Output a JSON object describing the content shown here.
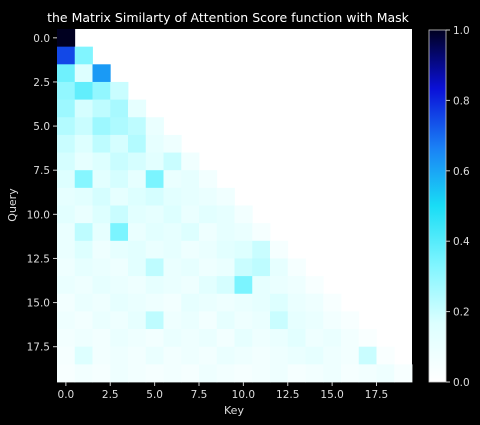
{
  "chart_data": {
    "type": "heatmap",
    "title": "the Matrix Similarty of Attention Score function with Mask",
    "xlabel": "Key",
    "ylabel": "Query",
    "x_tick_labels": [
      "0.0",
      "2.5",
      "5.0",
      "7.5",
      "10.0",
      "12.5",
      "15.0",
      "17.5"
    ],
    "y_tick_labels": [
      "0.0",
      "2.5",
      "5.0",
      "7.5",
      "10.0",
      "12.5",
      "15.0",
      "17.5"
    ],
    "tick_values": [
      0,
      2.5,
      5,
      7.5,
      10,
      12.5,
      15,
      17.5
    ],
    "colorbar": {
      "range": [
        0,
        1
      ],
      "tick_values": [
        0,
        0.2,
        0.4,
        0.6,
        0.8,
        1.0
      ],
      "tick_labels": [
        "0.0",
        "0.2",
        "0.4",
        "0.6",
        "0.8",
        "1.0"
      ],
      "colormap_stops": [
        "#ffffff",
        "#dcffff",
        "#7ff5ff",
        "#19ddf5",
        "#1a80f5",
        "#0a10d8",
        "#000020"
      ]
    },
    "size": 20,
    "masked_upper_triangle": true,
    "values": [
      [
        1.0
      ],
      [
        0.75,
        0.33
      ],
      [
        0.36,
        0.16,
        0.62
      ],
      [
        0.3,
        0.38,
        0.3,
        0.2
      ],
      [
        0.28,
        0.18,
        0.22,
        0.26,
        0.12
      ],
      [
        0.24,
        0.2,
        0.28,
        0.25,
        0.22,
        0.1
      ],
      [
        0.2,
        0.16,
        0.22,
        0.18,
        0.24,
        0.12,
        0.08
      ],
      [
        0.18,
        0.12,
        0.16,
        0.2,
        0.18,
        0.14,
        0.2,
        0.07
      ],
      [
        0.16,
        0.32,
        0.14,
        0.18,
        0.12,
        0.34,
        0.1,
        0.12,
        0.06
      ],
      [
        0.12,
        0.14,
        0.18,
        0.12,
        0.16,
        0.18,
        0.14,
        0.12,
        0.1,
        0.07
      ],
      [
        0.14,
        0.1,
        0.16,
        0.2,
        0.14,
        0.12,
        0.16,
        0.1,
        0.14,
        0.12,
        0.06
      ],
      [
        0.1,
        0.22,
        0.12,
        0.34,
        0.1,
        0.14,
        0.12,
        0.16,
        0.08,
        0.12,
        0.1,
        0.05
      ],
      [
        0.1,
        0.16,
        0.08,
        0.12,
        0.14,
        0.1,
        0.12,
        0.08,
        0.1,
        0.14,
        0.16,
        0.2,
        0.05
      ],
      [
        0.08,
        0.12,
        0.1,
        0.08,
        0.14,
        0.22,
        0.1,
        0.12,
        0.08,
        0.1,
        0.2,
        0.22,
        0.12,
        0.05
      ],
      [
        0.1,
        0.08,
        0.12,
        0.1,
        0.08,
        0.12,
        0.1,
        0.08,
        0.14,
        0.18,
        0.34,
        0.12,
        0.1,
        0.08,
        0.04
      ],
      [
        0.06,
        0.1,
        0.08,
        0.12,
        0.1,
        0.08,
        0.06,
        0.12,
        0.1,
        0.08,
        0.1,
        0.12,
        0.16,
        0.1,
        0.08,
        0.04
      ],
      [
        0.08,
        0.06,
        0.1,
        0.08,
        0.12,
        0.22,
        0.08,
        0.1,
        0.06,
        0.12,
        0.08,
        0.1,
        0.2,
        0.12,
        0.1,
        0.06,
        0.04
      ],
      [
        0.06,
        0.08,
        0.06,
        0.1,
        0.08,
        0.06,
        0.1,
        0.08,
        0.1,
        0.06,
        0.12,
        0.08,
        0.1,
        0.14,
        0.08,
        0.1,
        0.06,
        0.03
      ],
      [
        0.05,
        0.16,
        0.06,
        0.08,
        0.06,
        0.1,
        0.06,
        0.08,
        0.06,
        0.1,
        0.08,
        0.06,
        0.08,
        0.1,
        0.12,
        0.08,
        0.06,
        0.2,
        0.03
      ],
      [
        0.04,
        0.06,
        0.05,
        0.08,
        0.06,
        0.05,
        0.06,
        0.05,
        0.08,
        0.06,
        0.05,
        0.06,
        0.08,
        0.05,
        0.06,
        0.08,
        0.05,
        0.06,
        0.08,
        0.04
      ]
    ]
  }
}
